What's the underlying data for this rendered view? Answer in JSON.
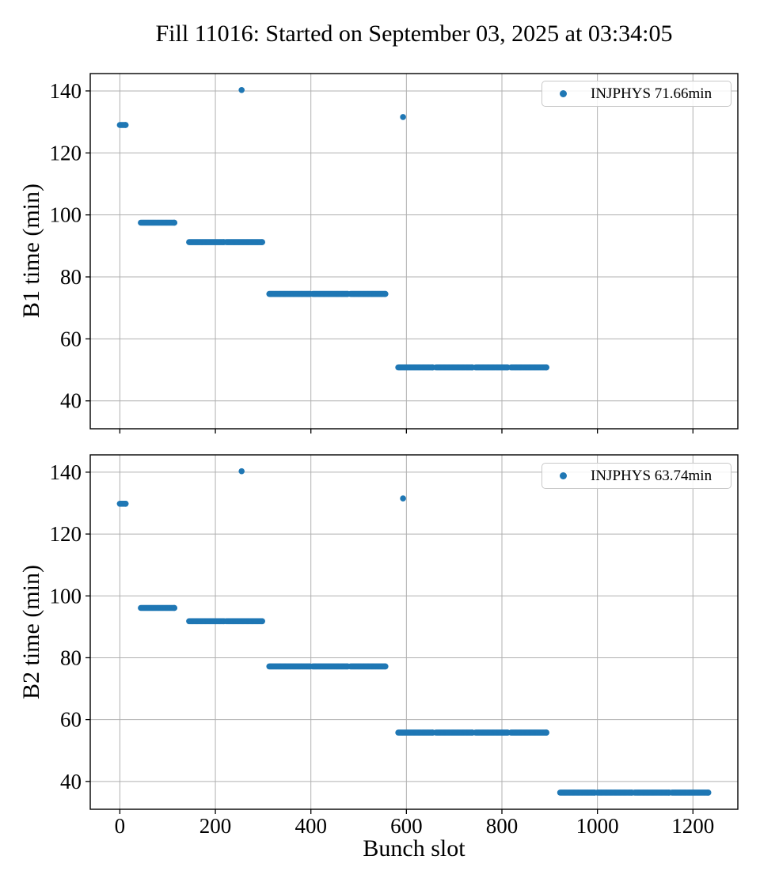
{
  "figure": {
    "title": "Fill 11016: Started on September 03, 2025 at 03:34:05",
    "xlabel": "Bunch slot"
  },
  "chart_data": [
    {
      "type": "scatter",
      "subplot": "top",
      "ylabel": "B1 time (min)",
      "legend_label": "INJPHYS 71.66min",
      "legend_position": "upper right",
      "marker_color": "#1f77b4",
      "grid": true,
      "grid_color": "#b0b0b0",
      "xlim": [
        -62,
        1294
      ],
      "ylim": [
        31,
        145.6
      ],
      "xticks": [
        0,
        200,
        400,
        600,
        800,
        1000,
        1200
      ],
      "yticks": [
        40,
        60,
        80,
        100,
        120,
        140
      ],
      "segment_fields": [
        "start_bunch_slot",
        "end_bunch_slot",
        "time_min"
      ],
      "segments": [
        [
          0,
          12,
          129.0
        ],
        [
          44,
          114,
          97.5
        ],
        [
          145,
          218,
          91.2
        ],
        [
          223,
          298,
          91.2
        ],
        [
          313,
          398,
          74.5
        ],
        [
          404,
          477,
          74.5
        ],
        [
          483,
          556,
          74.5
        ],
        [
          583,
          655,
          50.8
        ],
        [
          662,
          738,
          50.8
        ],
        [
          745,
          812,
          50.8
        ],
        [
          819,
          893,
          50.8
        ]
      ],
      "outlier_points": [
        [
          255,
          140.3
        ],
        [
          593,
          131.6
        ]
      ]
    },
    {
      "type": "scatter",
      "subplot": "bottom",
      "ylabel": "B2 time (min)",
      "legend_label": "INJPHYS 63.74min",
      "legend_position": "upper right",
      "marker_color": "#1f77b4",
      "grid": true,
      "grid_color": "#b0b0b0",
      "xlim": [
        -62,
        1294
      ],
      "ylim": [
        31,
        145.6
      ],
      "xticks": [
        0,
        200,
        400,
        600,
        800,
        1000,
        1200
      ],
      "yticks": [
        40,
        60,
        80,
        100,
        120,
        140
      ],
      "segment_fields": [
        "start_bunch_slot",
        "end_bunch_slot",
        "time_min"
      ],
      "segments": [
        [
          0,
          12,
          129.8
        ],
        [
          44,
          114,
          96.1
        ],
        [
          145,
          218,
          91.8
        ],
        [
          223,
          298,
          91.8
        ],
        [
          313,
          398,
          77.2
        ],
        [
          404,
          477,
          77.2
        ],
        [
          483,
          556,
          77.2
        ],
        [
          583,
          655,
          55.8
        ],
        [
          662,
          738,
          55.8
        ],
        [
          745,
          812,
          55.8
        ],
        [
          819,
          893,
          55.8
        ],
        [
          922,
          994,
          36.4
        ],
        [
          1000,
          1072,
          36.4
        ],
        [
          1078,
          1150,
          36.4
        ],
        [
          1156,
          1232,
          36.4
        ]
      ],
      "outlier_points": [
        [
          255,
          140.3
        ],
        [
          593,
          131.5
        ]
      ]
    }
  ]
}
